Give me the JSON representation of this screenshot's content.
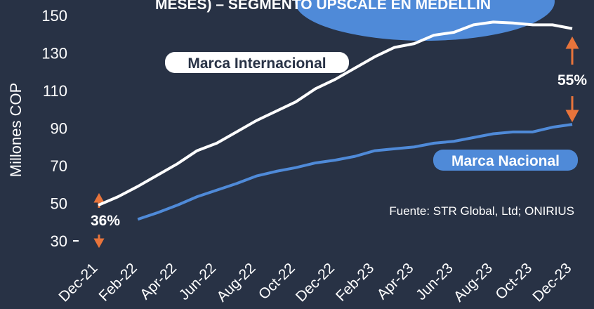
{
  "chart_data": {
    "type": "line",
    "title": "MESES) – SEGMENTO UPSCALE EN MEDELLÍN",
    "y_label": "Millones COP",
    "source": "Fuente: STR Global, Ltd; ONIRIUS",
    "annotations": [
      "55%",
      "36%"
    ],
    "categories": [
      "Dec-21",
      null,
      "Feb-22",
      null,
      "Apr-22",
      null,
      "Jun-22",
      null,
      "Aug-22",
      null,
      "Oct-22",
      null,
      "Dec-22",
      null,
      "Feb-23",
      null,
      "Apr-23",
      null,
      "Jun-23",
      null,
      "Aug-23",
      null,
      "Oct-23",
      null,
      "Dec-23"
    ],
    "series": [
      {
        "name": "Marca Internacional",
        "color": "#ffffff",
        "values": [
          49,
          53.5,
          59,
          65,
          71,
          78,
          82,
          88,
          94,
          99,
          104,
          111,
          116,
          122,
          128,
          133,
          135,
          139.5,
          141,
          145,
          146.5,
          146,
          145,
          145,
          143
        ]
      },
      {
        "name": "Marca Nacional",
        "color": "#4f8ad8",
        "values": [
          null,
          null,
          41.5,
          45,
          49,
          53.5,
          57,
          60.5,
          64.5,
          67,
          69,
          71.5,
          73,
          75,
          78,
          79,
          80,
          82,
          83,
          85,
          87,
          88,
          88,
          90.5,
          92
        ]
      }
    ],
    "ylim": [
      30,
      150
    ],
    "yticks": [
      30,
      50,
      70,
      90,
      110,
      130,
      150
    ],
    "grid": false
  }
}
